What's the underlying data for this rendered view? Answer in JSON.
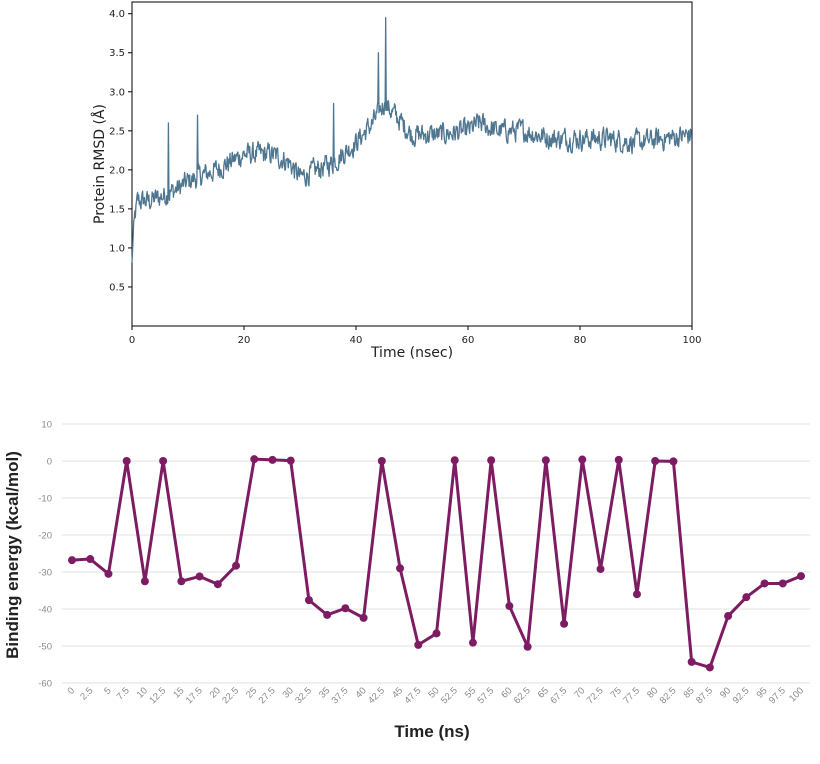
{
  "charts": [
    {
      "type": "line",
      "title": "",
      "xlabel": "Time (nsec)",
      "ylabel": "Protein RMSD (Å)",
      "xlim": [
        0,
        100
      ],
      "ylim": [
        0,
        4.15
      ],
      "xticks": [
        "0",
        "20",
        "40",
        "60",
        "80",
        "100"
      ],
      "yticks": [
        "0.5",
        "1.0",
        "1.5",
        "2.0",
        "2.5",
        "3.0",
        "3.5",
        "4.0"
      ],
      "line_color": "#4e7690",
      "grid": false,
      "trend": {
        "x": [
          0,
          0.3,
          1,
          3,
          5,
          8,
          10,
          15,
          20,
          25,
          28,
          30,
          33,
          36,
          40,
          43,
          45,
          47,
          50,
          55,
          60,
          62,
          65,
          70,
          75,
          80,
          85,
          90,
          95,
          100
        ],
        "y": [
          0.8,
          1.3,
          1.6,
          1.6,
          1.65,
          1.75,
          1.85,
          2.0,
          2.2,
          2.2,
          2.1,
          1.9,
          2.0,
          2.1,
          2.35,
          2.6,
          2.85,
          2.7,
          2.45,
          2.45,
          2.5,
          2.6,
          2.5,
          2.5,
          2.4,
          2.4,
          2.4,
          2.35,
          2.4,
          2.45
        ]
      },
      "noise_amplitude": 0.22,
      "spikes": [
        {
          "x": 45.3,
          "y": 3.95
        },
        {
          "x": 6.5,
          "y": 2.6
        },
        {
          "x": 11.7,
          "y": 2.7
        },
        {
          "x": 36.0,
          "y": 2.85
        },
        {
          "x": 44.0,
          "y": 3.5
        }
      ]
    },
    {
      "type": "line",
      "title": "",
      "xlabel": "Time (ns)",
      "ylabel": "Binding energy (kcal/mol)",
      "ylim": [
        -60,
        10
      ],
      "yticks": [
        "10",
        "0",
        "-10",
        "-20",
        "-30",
        "-40",
        "-50",
        "-60"
      ],
      "categories": [
        "0",
        "2.5",
        "5",
        "7.5",
        "10",
        "12.5",
        "15",
        "17.5",
        "20",
        "22.5",
        "25",
        "27.5",
        "30",
        "32.5",
        "35",
        "37.5",
        "40",
        "42.5",
        "45",
        "47.5",
        "50",
        "52.5",
        "55",
        "57.5",
        "60",
        "62.5",
        "65",
        "67.5",
        "70",
        "72.5",
        "75",
        "77.5",
        "80",
        "82.5",
        "85",
        "87.5",
        "90",
        "92.5",
        "95",
        "97.5",
        "100"
      ],
      "values": [
        -26.8,
        -26.5,
        -30.5,
        0,
        -32.5,
        0,
        -32.5,
        -31.2,
        -33.3,
        -28.3,
        0.5,
        0.3,
        0.1,
        -37.6,
        -41.6,
        -39.8,
        -42.4,
        0,
        -29,
        -49.7,
        -46.6,
        0.2,
        -49.1,
        0.2,
        -39.2,
        -50.2,
        0.2,
        -44,
        0.4,
        -29.2,
        0.3,
        -36,
        0,
        -0.1,
        -54.3,
        -55.8,
        -41.9,
        -36.8,
        -33.1,
        -33.1,
        -31.1
      ],
      "line_color": "#7d1c63",
      "grid": true
    }
  ]
}
